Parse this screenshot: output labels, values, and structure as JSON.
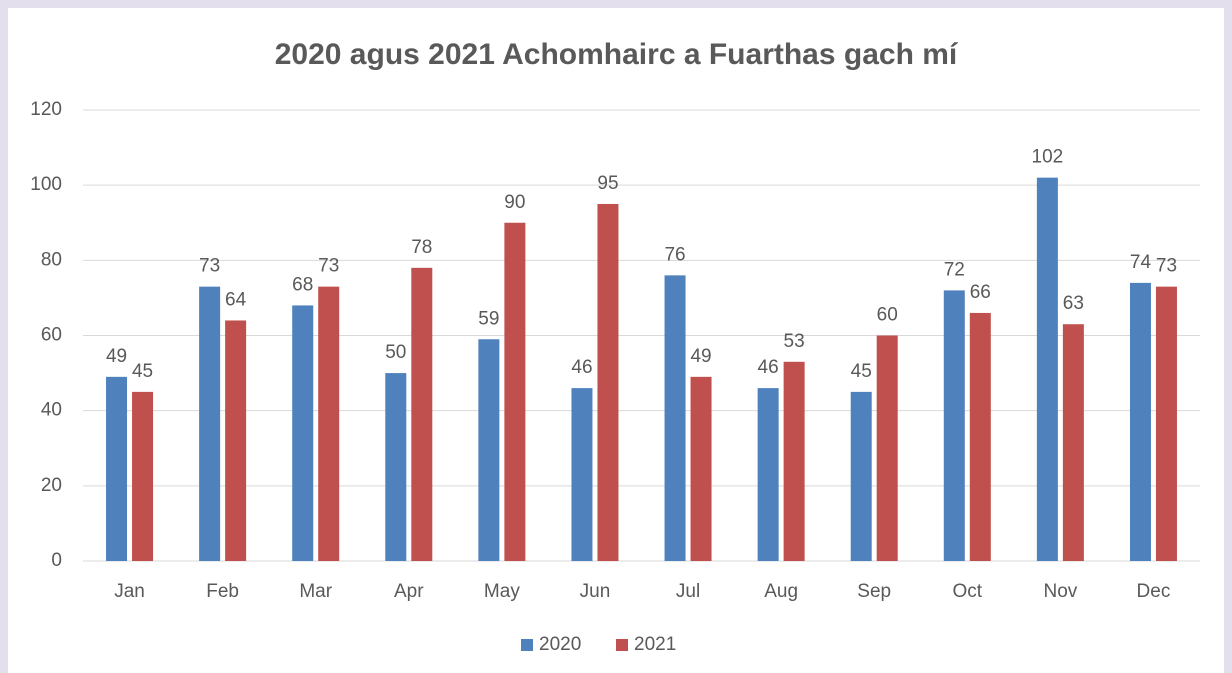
{
  "chart_data": {
    "type": "bar",
    "title": "2020 agus 2021 Achomhairc a Fuarthas gach mí",
    "categories": [
      "Jan",
      "Feb",
      "Mar",
      "Apr",
      "May",
      "Jun",
      "Jul",
      "Aug",
      "Sep",
      "Oct",
      "Nov",
      "Dec"
    ],
    "series": [
      {
        "name": "2020",
        "color": "#4f81bd",
        "values": [
          49,
          73,
          68,
          50,
          59,
          46,
          76,
          46,
          45,
          72,
          102,
          74
        ]
      },
      {
        "name": "2021",
        "color": "#c0504d",
        "values": [
          45,
          64,
          73,
          78,
          90,
          95,
          49,
          53,
          60,
          66,
          63,
          73
        ]
      }
    ],
    "ylim": [
      0,
      120
    ],
    "yticks": [
      0,
      20,
      40,
      60,
      80,
      100,
      120
    ],
    "grid": true,
    "legend": "bottom"
  }
}
